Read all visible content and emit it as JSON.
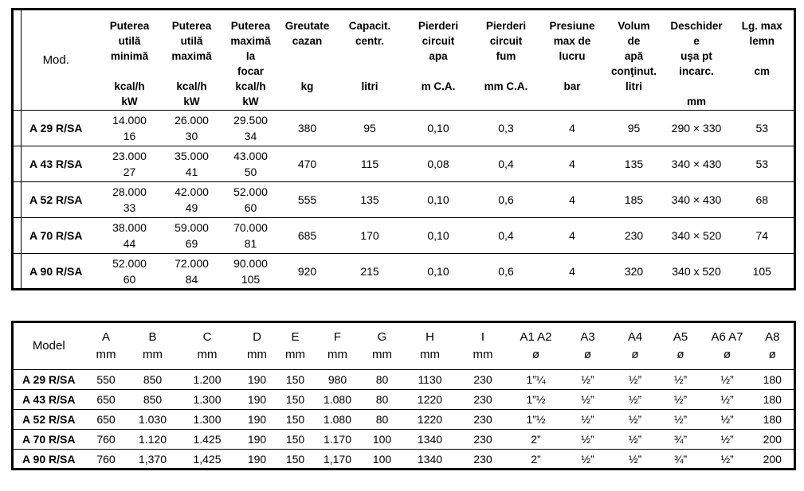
{
  "colors": {
    "background": "#ffffff",
    "text": "#000000",
    "border": "#000000"
  },
  "spec_table": {
    "header": [
      "Mod.",
      "Puterea\nutilă\nminimă\n\nkcal/h\nkW",
      "Puterea\nutilă\nmaximă\n\nkcal/h\nkW",
      "Puterea\nmaximă\nla\nfocar\nkcal/h\nkW",
      "Greutate\ncazan\n\n\nkg",
      "Capacit.\ncentr.\n\n\nlitri",
      "Pierderi\ncircuit\napa\n\nm C.A.",
      "Pierderi\ncircuit\nfum\n\nmm C.A.",
      "Presiune\nmax de\nlucru\n\nbar",
      "Volum\nde\napă\nconţinut.\nlitri",
      "Deschider\ne\nuşa pt\nincarc.\n\nmm",
      "Lg. max\nlemn\n\ncm"
    ],
    "rows": [
      [
        "A 29 R/SA",
        "14.000\n16",
        "26.000\n30",
        "29.500\n34",
        "380",
        "95",
        "0,10",
        "0,3",
        "4",
        "95",
        "290 × 330",
        "53"
      ],
      [
        "A 43 R/SA",
        "23.000\n27",
        "35.000\n41",
        "43.000\n50",
        "470",
        "115",
        "0,08",
        "0,4",
        "4",
        "135",
        "340 × 430",
        "53"
      ],
      [
        "A 52 R/SA",
        "28.000\n33",
        "42.000\n49",
        "52.000\n60",
        "555",
        "135",
        "0,10",
        "0,6",
        "4",
        "185",
        "340 × 430",
        "68"
      ],
      [
        "A 70 R/SA",
        "38.000\n44",
        "59.000\n69",
        "70.000\n81",
        "685",
        "170",
        "0,10",
        "0,4",
        "4",
        "230",
        "340 × 520",
        "74"
      ],
      [
        "A 90 R/SA",
        "52.000\n60",
        "72.000\n84",
        "90.000\n105",
        "920",
        "215",
        "0,10",
        "0,6",
        "4",
        "320",
        "340 x 520",
        "105"
      ]
    ]
  },
  "dimensions_table": {
    "header": [
      "Model",
      "A\nmm",
      "B\nmm",
      "C\nmm",
      "D\nmm",
      "E\nmm",
      "F\nmm",
      "G\nmm",
      "H\nmm",
      "I\nmm",
      "A1 A2\nø",
      "A3\nø",
      "A4\nø",
      "A5\nø",
      "A6 A7\nø",
      "A8\nø"
    ],
    "rows": [
      [
        "A 29 R/SA",
        "550",
        "850",
        "1.200",
        "190",
        "150",
        "980",
        "80",
        "1130",
        "230",
        "1”¼",
        "½”",
        "½”",
        "½”",
        "½”",
        "180"
      ],
      [
        "A 43 R/SA",
        "650",
        "850",
        "1.300",
        "190",
        "150",
        "1.080",
        "80",
        "1220",
        "230",
        "1”½",
        "½”",
        "½”",
        "½”",
        "½”",
        "180"
      ],
      [
        "A 52 R/SA",
        "650",
        "1.030",
        "1.300",
        "190",
        "150",
        "1.080",
        "80",
        "1220",
        "230",
        "1”½",
        "½”",
        "½”",
        "½”",
        "½”",
        "180"
      ],
      [
        "A 70 R/SA",
        "760",
        "1.120",
        "1.425",
        "190",
        "150",
        "1.170",
        "100",
        "1340",
        "230",
        "2”",
        "½”",
        "½”",
        "¾”",
        "½”",
        "200"
      ],
      [
        "A 90 R/SA",
        "760",
        "1,370",
        "1,425",
        "190",
        "150",
        "1,170",
        "100",
        "1340",
        "230",
        "2”",
        "½”",
        "½”",
        "¾”",
        "½”",
        "200"
      ]
    ]
  }
}
